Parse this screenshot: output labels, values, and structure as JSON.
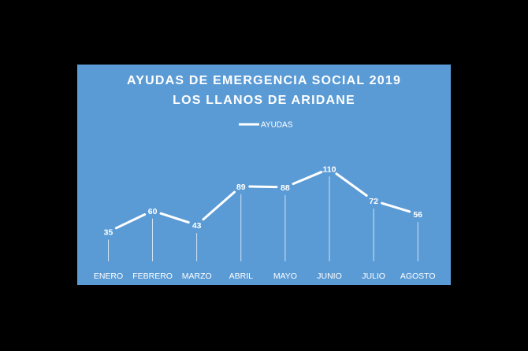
{
  "chart_data": {
    "type": "line",
    "title": "AYUDAS  DE  EMERGENCIA  SOCIAL  2019",
    "subtitle": "LOS  LLANOS  DE  ARIDANE",
    "categories": [
      "ENERO",
      "FEBRERO",
      "MARZO",
      "ABRIL",
      "MAYO",
      "JUNIO",
      "JULIO",
      "AGOSTO"
    ],
    "series": [
      {
        "name": "AYUDAS",
        "values": [
          35,
          60,
          43,
          89,
          88,
          110,
          72,
          56
        ]
      }
    ],
    "data_labels": true,
    "drop_lines": true,
    "grid": false,
    "legend_position": "top",
    "colors": {
      "background": "#5b9bd5",
      "line": "#ffffff",
      "text": "#ffffff"
    }
  }
}
